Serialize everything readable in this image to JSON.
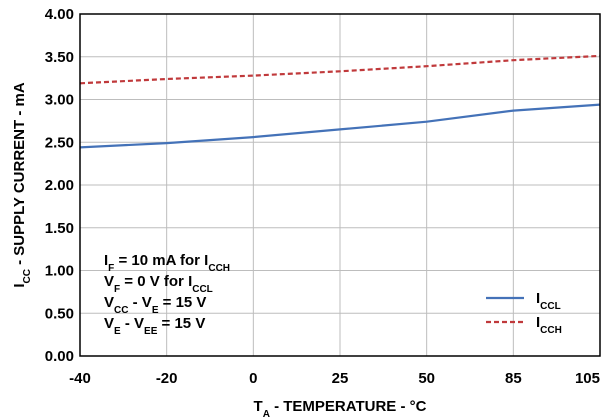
{
  "chart_data": {
    "type": "line",
    "x": [
      -40,
      -20,
      0,
      25,
      50,
      85,
      105
    ],
    "x_tick_labels": [
      "-40",
      "-20",
      "0",
      "25",
      "50",
      "85",
      "105"
    ],
    "y_tick_labels": [
      "0.00",
      "0.50",
      "1.00",
      "1.50",
      "2.00",
      "2.50",
      "3.00",
      "3.50",
      "4.00"
    ],
    "ylim": [
      0,
      4
    ],
    "grid": true,
    "legend_position": "bottom-right",
    "xlabel": {
      "main": "T",
      "sub": "A",
      "rest": " - TEMPERATURE - °C"
    },
    "ylabel": {
      "main": "I",
      "sub": "CC",
      "rest": " - SUPPLY CURRENT - mA"
    },
    "series": [
      {
        "name": "I",
        "name_sub": "CCL",
        "color": "#4472b8",
        "style": "solid",
        "values": [
          2.44,
          2.49,
          2.56,
          2.65,
          2.74,
          2.87,
          2.94
        ]
      },
      {
        "name": "I",
        "name_sub": "CCH",
        "color": "#c0393b",
        "style": "dashed",
        "values": [
          3.19,
          3.24,
          3.28,
          3.33,
          3.39,
          3.46,
          3.51
        ]
      }
    ],
    "annotations": [
      [
        {
          "t": "I",
          "s": false
        },
        {
          "t": "F",
          "s": true
        },
        {
          "t": " = 10 mA for I",
          "s": false
        },
        {
          "t": "CCH",
          "s": true
        }
      ],
      [
        {
          "t": "V",
          "s": false
        },
        {
          "t": "F",
          "s": true
        },
        {
          "t": " = 0 V for I",
          "s": false
        },
        {
          "t": "CCL",
          "s": true
        }
      ],
      [
        {
          "t": "V",
          "s": false
        },
        {
          "t": "CC",
          "s": true
        },
        {
          "t": " - V",
          "s": false
        },
        {
          "t": "E",
          "s": true
        },
        {
          "t": " = 15 V",
          "s": false
        }
      ],
      [
        {
          "t": "V",
          "s": false
        },
        {
          "t": "E",
          "s": true
        },
        {
          "t": " - V",
          "s": false
        },
        {
          "t": "EE",
          "s": true
        },
        {
          "t": " = 15 V",
          "s": false
        }
      ]
    ]
  }
}
